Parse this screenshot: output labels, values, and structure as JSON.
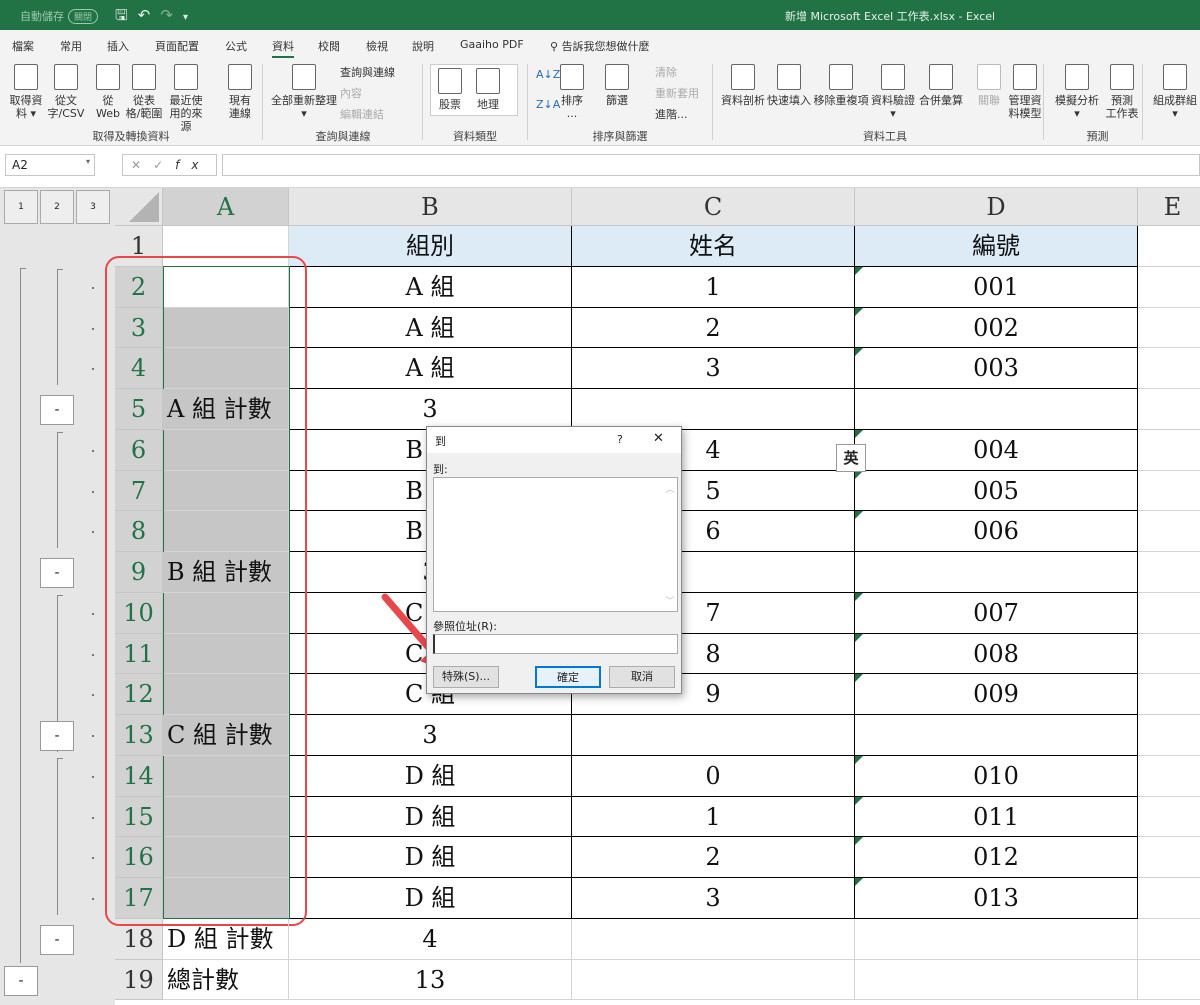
{
  "titlebar": {
    "autosave": "自動儲存",
    "autosave_state": "關閉",
    "title": "新增 Microsoft Excel 工作表.xlsx  -  Excel"
  },
  "tabs": [
    "檔案",
    "常用",
    "插入",
    "頁面配置",
    "公式",
    "資料",
    "校閱",
    "檢視",
    "說明",
    "Gaaiho PDF"
  ],
  "active_tab": "資料",
  "tell_me": "告訴我您想做什麼",
  "ribbon": {
    "get_data": {
      "label": "取得及轉換資料",
      "buttons": [
        "取得資\n料 ▾",
        "從文\n字/CSV",
        "從\nWeb",
        "從表\n格/範圍",
        "最近使\n用的來源",
        "現有\n連線"
      ]
    },
    "queries": {
      "label": "查詢與連線",
      "refresh": "全部重新整理\n▾",
      "items": [
        "查詢與連線",
        "內容",
        "編輯連結"
      ]
    },
    "data_types": {
      "label": "資料類型",
      "buttons": [
        "股票",
        "地理"
      ]
    },
    "sort_filter": {
      "label": "排序與篩選",
      "sort": "排序\n...",
      "filter": "篩選",
      "items": [
        "清除",
        "重新套用",
        "進階..."
      ]
    },
    "data_tools": {
      "label": "資料工具",
      "buttons": [
        "資料剖析",
        "快速填入",
        "移除重複項",
        "資料驗證\n▾",
        "合併彙算",
        "關聯",
        "管理資\n料模型"
      ]
    },
    "forecast": {
      "label": "預測",
      "buttons": [
        "模擬分析\n▾",
        "預測\n工作表"
      ]
    },
    "outline": {
      "buttons": [
        "組成群組\n▾"
      ]
    }
  },
  "formula_bar": {
    "name_box": "A2",
    "formula": ""
  },
  "outline_levels": [
    "1",
    "2",
    "3"
  ],
  "columns": [
    "A",
    "B",
    "C",
    "D",
    "E"
  ],
  "rows": [
    {
      "n": "1",
      "a": "",
      "b": "組別",
      "c": "姓名",
      "d": "編號"
    },
    {
      "n": "2",
      "a": "",
      "b": "A 組",
      "c": "1",
      "d": "001"
    },
    {
      "n": "3",
      "a": "",
      "b": "A 組",
      "c": "2",
      "d": "002"
    },
    {
      "n": "4",
      "a": "",
      "b": "A 組",
      "c": "3",
      "d": "003"
    },
    {
      "n": "5",
      "a": "A 組 計數",
      "b": "3",
      "c": "",
      "d": ""
    },
    {
      "n": "6",
      "a": "",
      "b": "B 組",
      "c": "4",
      "d": "004"
    },
    {
      "n": "7",
      "a": "",
      "b": "B 組",
      "c": "5",
      "d": "005"
    },
    {
      "n": "8",
      "a": "",
      "b": "B 組",
      "c": "6",
      "d": "006"
    },
    {
      "n": "9",
      "a": "B 組 計數",
      "b": "3",
      "c": "",
      "d": ""
    },
    {
      "n": "10",
      "a": "",
      "b": "C 組",
      "c": "7",
      "d": "007"
    },
    {
      "n": "11",
      "a": "",
      "b": "C 組",
      "c": "8",
      "d": "008"
    },
    {
      "n": "12",
      "a": "",
      "b": "C 組",
      "c": "9",
      "d": "009"
    },
    {
      "n": "13",
      "a": "C 組 計數",
      "b": "3",
      "c": "",
      "d": ""
    },
    {
      "n": "14",
      "a": "",
      "b": "D 組",
      "c": "0",
      "d": "010"
    },
    {
      "n": "15",
      "a": "",
      "b": "D 組",
      "c": "1",
      "d": "011"
    },
    {
      "n": "16",
      "a": "",
      "b": "D 組",
      "c": "2",
      "d": "012"
    },
    {
      "n": "17",
      "a": "",
      "b": "D 組",
      "c": "3",
      "d": "013"
    },
    {
      "n": "18",
      "a": "D 組 計數",
      "b": "4",
      "c": "",
      "d": ""
    },
    {
      "n": "19",
      "a": "總計數",
      "b": "13",
      "c": "",
      "d": ""
    }
  ],
  "dialog": {
    "title": "到",
    "help": "?",
    "close": "✕",
    "list_label": "到:",
    "ref_label": "參照位址(R):",
    "ref_value": "",
    "special": "特殊(S)...",
    "ok": "確定",
    "cancel": "取消"
  },
  "ime": "英",
  "colors": {
    "excel_green": "#217346",
    "header_fill": "#ddebf7",
    "selection": "#c6c6c6",
    "annotation_red": "#e8474c"
  }
}
